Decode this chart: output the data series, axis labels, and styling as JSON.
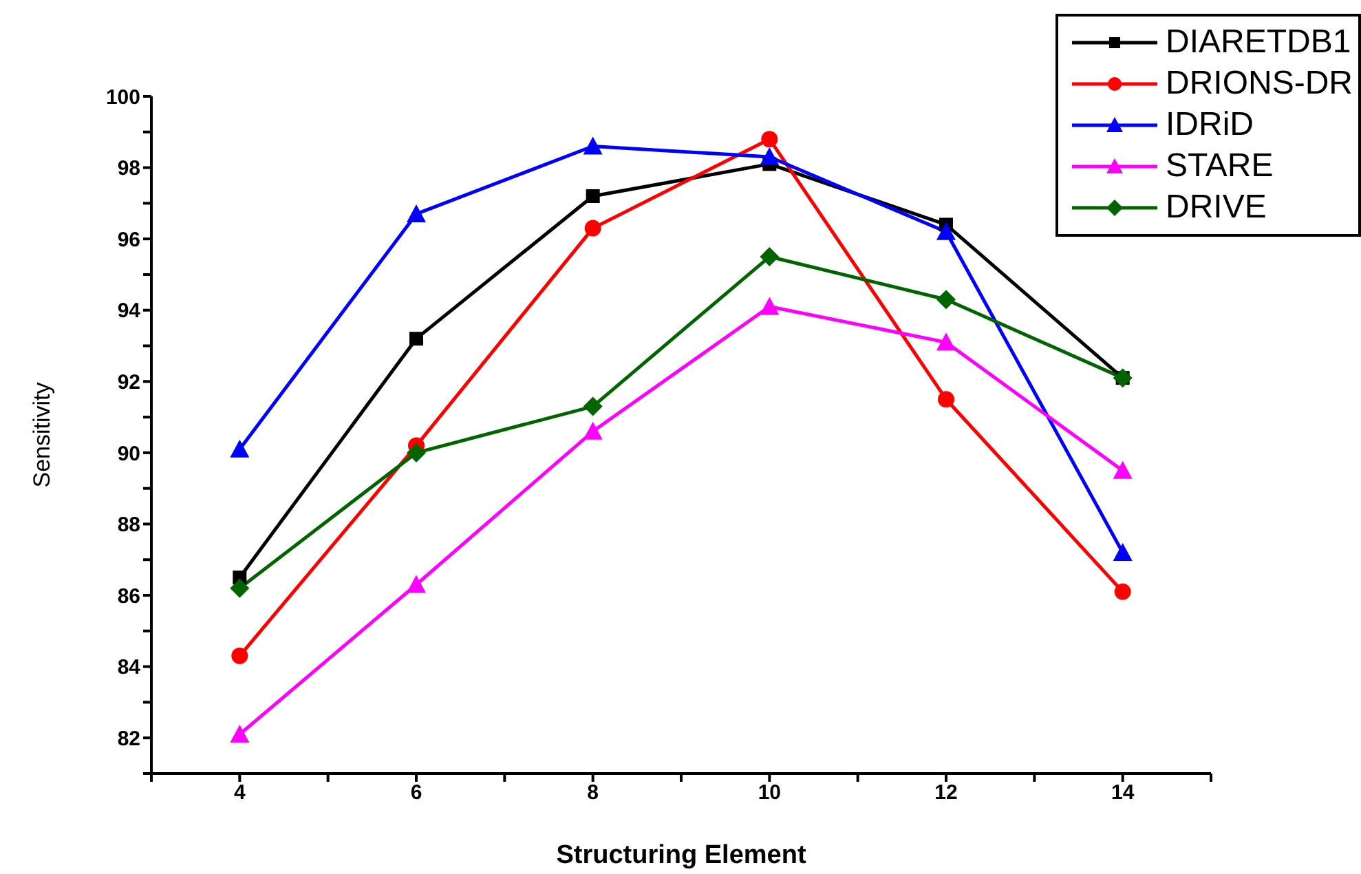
{
  "chart_data": {
    "type": "line",
    "xlabel": "Structuring Element",
    "ylabel": "Sensitivity",
    "x": [
      4,
      6,
      8,
      10,
      12,
      14
    ],
    "xlim": [
      3,
      15
    ],
    "xticks": [
      {
        "value": 3,
        "label": null
      },
      4,
      {
        "value": 5,
        "label": null
      },
      6,
      {
        "value": 7,
        "label": null
      },
      8,
      {
        "value": 9,
        "label": null
      },
      10,
      {
        "value": 11,
        "label": null
      },
      12,
      {
        "value": 13,
        "label": null
      },
      14,
      {
        "value": 15,
        "label": null
      }
    ],
    "ylim": [
      81,
      100
    ],
    "yticks": [
      {
        "value": 81,
        "label": null
      },
      82,
      {
        "value": 83,
        "label": null
      },
      84,
      {
        "value": 85,
        "label": null
      },
      86,
      {
        "value": 87,
        "label": null
      },
      88,
      {
        "value": 89,
        "label": null
      },
      90,
      {
        "value": 91,
        "label": null
      },
      92,
      {
        "value": 93,
        "label": null
      },
      94,
      {
        "value": 95,
        "label": null
      },
      96,
      {
        "value": 97,
        "label": null
      },
      98,
      {
        "value": 99,
        "label": null
      },
      100
    ],
    "grid": false,
    "legend": "top right",
    "line_style": "solid",
    "series": [
      {
        "name": "DIARETDB1",
        "color": "#000000",
        "marker": "square",
        "values": [
          86.5,
          93.2,
          97.2,
          98.1,
          96.4,
          92.1
        ]
      },
      {
        "name": "DRIONS-DR",
        "color": "#ff0000",
        "marker": "circle",
        "values": [
          84.3,
          90.2,
          96.3,
          98.8,
          91.5,
          86.1
        ]
      },
      {
        "name": "IDRiD",
        "color": "#0000ff",
        "marker": "triangle",
        "values": [
          90.1,
          96.7,
          98.6,
          98.3,
          96.2,
          87.2
        ]
      },
      {
        "name": "STARE",
        "color": "#ff00ff",
        "marker": "triangle",
        "values": [
          82.1,
          86.3,
          90.6,
          94.1,
          93.1,
          89.5
        ]
      },
      {
        "name": "DRIVE",
        "color": "#006400",
        "marker": "diamond",
        "values": [
          86.2,
          90.0,
          91.3,
          95.5,
          94.3,
          92.1
        ]
      }
    ]
  }
}
